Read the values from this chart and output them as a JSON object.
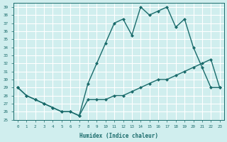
{
  "xlabel": "Humidex (Indice chaleur)",
  "bg_color": "#d0eeee",
  "grid_color": "#ffffff",
  "line_color": "#1a6b6b",
  "xlim": [
    -0.5,
    23.5
  ],
  "ylim": [
    25,
    39.5
  ],
  "xticks": [
    0,
    1,
    2,
    3,
    4,
    5,
    6,
    7,
    8,
    9,
    10,
    11,
    12,
    13,
    14,
    15,
    16,
    17,
    18,
    19,
    20,
    21,
    22,
    23
  ],
  "yticks": [
    25,
    26,
    27,
    28,
    29,
    30,
    31,
    32,
    33,
    34,
    35,
    36,
    37,
    38,
    39
  ],
  "upper_x": [
    0,
    1,
    2,
    3,
    4,
    5,
    6,
    7,
    8,
    9,
    10,
    11,
    12,
    13,
    14,
    15,
    16,
    17,
    18,
    19,
    20,
    21,
    22,
    23
  ],
  "upper_y": [
    29,
    28,
    27.5,
    27,
    26.5,
    26,
    26,
    25.5,
    29.5,
    32,
    34.5,
    37,
    37.5,
    35.5,
    39,
    38,
    38.5,
    39,
    36.5,
    37.5,
    34,
    31.5,
    29,
    29
  ],
  "lower_x": [
    0,
    1,
    2,
    3,
    4,
    5,
    6,
    7,
    8,
    9,
    10,
    11,
    12,
    13,
    14,
    15,
    16,
    17,
    18,
    19,
    20,
    21,
    22,
    23
  ],
  "lower_y": [
    29,
    28,
    27.5,
    27,
    26.5,
    26,
    26,
    25.5,
    27.5,
    27.5,
    27.5,
    28,
    28,
    28.5,
    29,
    29.5,
    30,
    30,
    30.5,
    31,
    31.5,
    32,
    32.5,
    29
  ]
}
